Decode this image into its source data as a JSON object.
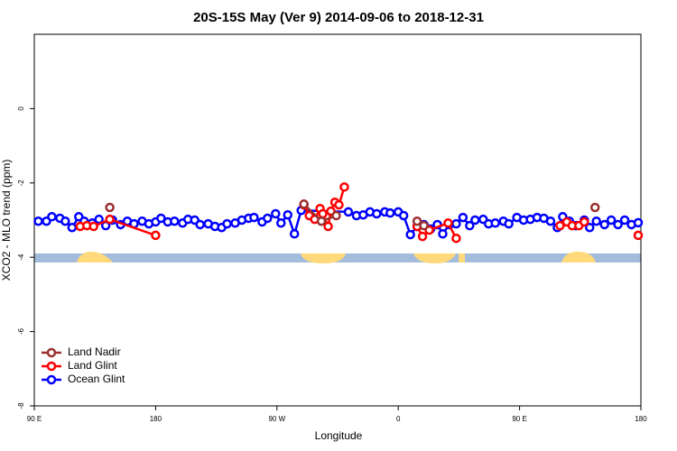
{
  "chart_data": {
    "type": "line",
    "title": "20S-15S May (Ver 9)   2014-09-06 to 2018-12-31",
    "xlabel": "Longitude",
    "ylabel": "XCO2 - MLO trend (ppm)",
    "xlim": [
      90,
      540
    ],
    "ylim": [
      -8,
      2
    ],
    "xticks": [
      {
        "value": 90,
        "label": "90 E"
      },
      180,
      {
        "value": 270,
        "label": "90 W"
      },
      {
        "value": 360,
        "label": "0"
      },
      {
        "value": 450,
        "label": "90 E"
      },
      {
        "value": 540,
        "label": "180"
      }
    ],
    "yticks": [
      -8,
      -6,
      -4,
      -2,
      0
    ],
    "legend": "bottom-left",
    "series": [
      {
        "name": "Land Nadir",
        "color": "#9b3030",
        "x": [
          146,
          null,
          290,
          303,
          314,
          null,
          374,
          379,
          null,
          506
        ],
        "values": [
          -2.66,
          null,
          -2.57,
          -3.03,
          -2.88,
          null,
          -3.03,
          -3.15,
          null,
          -2.66
        ]
      },
      {
        "name": "Land Glint",
        "color": "#ff0000",
        "x": [
          124,
          129,
          134,
          146,
          180,
          null,
          290,
          294,
          298,
          302,
          304,
          308,
          310,
          313,
          316,
          320,
          null,
          374,
          378,
          383,
          397,
          403,
          null,
          480,
          485,
          489,
          494,
          498,
          null,
          538
        ],
        "values": [
          -3.17,
          -3.15,
          -3.17,
          -2.98,
          -3.41,
          null,
          -2.59,
          -2.88,
          -2.98,
          -2.69,
          -2.83,
          -3.17,
          -2.76,
          -2.52,
          -2.59,
          -2.11,
          null,
          -3.17,
          -3.44,
          -3.27,
          -3.08,
          -3.49,
          null,
          -3.15,
          -3.05,
          -3.15,
          -3.15,
          -3.05,
          null,
          -3.41
        ]
      },
      {
        "name": "Ocean Glint",
        "color": "#0000ff",
        "x": [
          93,
          99,
          103,
          109,
          113,
          118,
          123,
          127,
          133,
          138,
          143,
          148,
          154,
          159,
          164,
          170,
          175,
          180,
          184,
          189,
          194,
          200,
          204,
          209,
          213,
          219,
          224,
          229,
          233,
          239,
          244,
          249,
          253,
          259,
          263,
          269,
          273,
          278,
          283,
          288,
          323,
          329,
          334,
          339,
          344,
          350,
          354,
          360,
          364,
          369,
          374,
          379,
          384,
          389,
          393,
          398,
          403,
          408,
          413,
          417,
          423,
          427,
          432,
          438,
          442,
          448,
          453,
          458,
          463,
          468,
          473,
          478,
          482,
          487,
          492,
          498,
          502,
          507,
          513,
          518,
          523,
          528,
          533,
          538
        ],
        "values": [
          -3.03,
          -3.03,
          -2.91,
          -2.95,
          -3.03,
          -3.2,
          -2.91,
          -3.03,
          -3.08,
          -2.98,
          -3.15,
          -3.0,
          -3.12,
          -3.03,
          -3.1,
          -3.03,
          -3.1,
          -3.05,
          -2.95,
          -3.05,
          -3.03,
          -3.08,
          -2.98,
          -3.0,
          -3.12,
          -3.1,
          -3.17,
          -3.2,
          -3.1,
          -3.08,
          -3.0,
          -2.95,
          -2.93,
          -3.05,
          -2.95,
          -2.83,
          -3.08,
          -2.86,
          -3.37,
          -2.74,
          -2.78,
          -2.88,
          -2.86,
          -2.78,
          -2.83,
          -2.78,
          -2.81,
          -2.78,
          -2.88,
          -3.39,
          -3.17,
          -3.12,
          -3.24,
          -3.12,
          -3.37,
          -3.12,
          -3.1,
          -2.93,
          -3.15,
          -3.0,
          -2.98,
          -3.1,
          -3.08,
          -3.03,
          -3.1,
          -2.93,
          -3.0,
          -2.98,
          -2.93,
          -2.95,
          -3.03,
          -3.2,
          -2.91,
          -3.03,
          -3.15,
          -3.0,
          -3.2,
          -3.03,
          -3.12,
          -3.0,
          -3.12,
          -3.0,
          -3.12,
          -3.07
        ]
      }
    ]
  }
}
